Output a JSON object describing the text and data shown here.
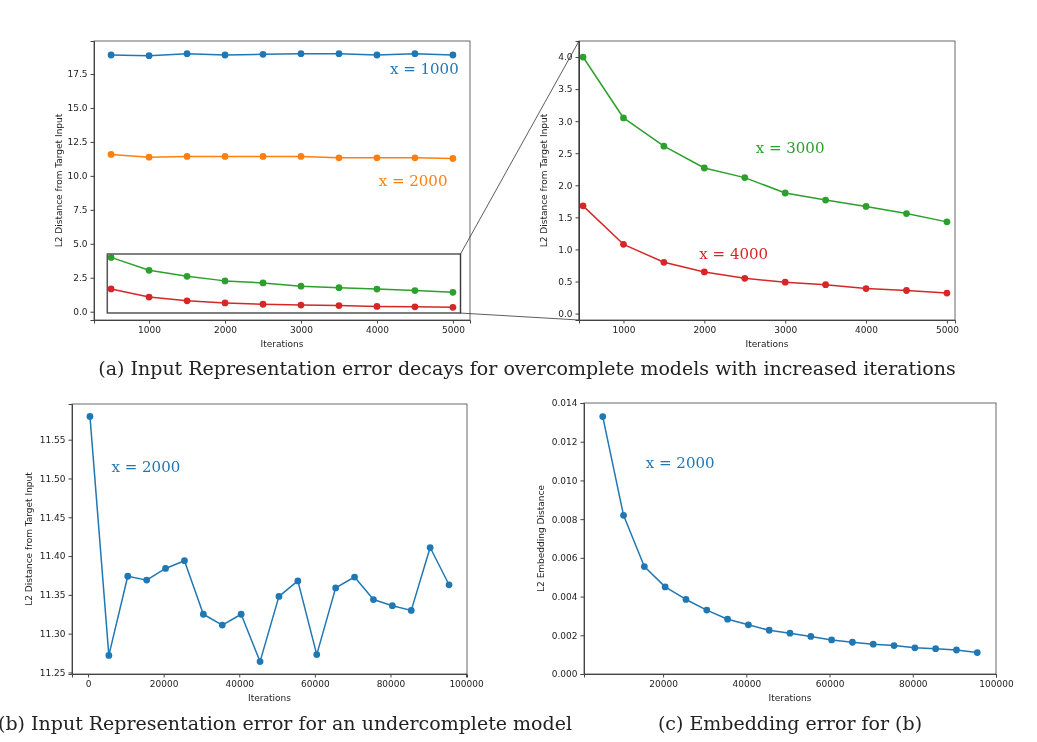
{
  "chart_data": [
    {
      "type": "line",
      "xlabel": "Iterations",
      "ylabel": "L2 Distance from Target Input",
      "x": [
        500,
        1000,
        1500,
        2000,
        2500,
        3000,
        3500,
        4000,
        4500,
        5000
      ],
      "series": [
        {
          "name": "x = 1000",
          "color": "#1f77b4",
          "values": [
            18.9,
            18.85,
            19.0,
            18.9,
            18.95,
            19.0,
            19.0,
            18.9,
            19.0,
            18.9
          ]
        },
        {
          "name": "x = 2000",
          "color": "#ff7f0e",
          "values": [
            11.58,
            11.38,
            11.43,
            11.43,
            11.43,
            11.43,
            11.33,
            11.33,
            11.33,
            11.28
          ]
        },
        {
          "color": "#2ca02c",
          "values": [
            4.0,
            3.05,
            2.61,
            2.27,
            2.12,
            1.88,
            1.77,
            1.67,
            1.56,
            1.43
          ]
        },
        {
          "color": "#d62728",
          "values": [
            1.68,
            1.08,
            0.8,
            0.65,
            0.55,
            0.49,
            0.45,
            0.39,
            0.36,
            0.32
          ]
        }
      ],
      "xlim": [
        275,
        5225
      ],
      "xticks": [
        1000,
        2000,
        3000,
        4000,
        5000
      ],
      "ylim": [
        -0.61,
        19.93
      ],
      "yticks": [
        {
          "value": 0,
          "label": "0.0"
        },
        2.5,
        {
          "value": 5,
          "label": "5.0"
        },
        7.5,
        {
          "value": 10,
          "label": "10.0"
        },
        12.5,
        {
          "value": 15,
          "label": "15.0"
        },
        17.5
      ],
      "marker": "circle",
      "line_style": "solid",
      "grid": false,
      "annotations": [
        "(a) Input Representation error decays for overcomplete models with increased iterations"
      ]
    },
    {
      "type": "line",
      "xlabel": "Iterations",
      "ylabel": "L2 Distance from Target Input",
      "x": [
        500,
        1000,
        1500,
        2000,
        2500,
        3000,
        3500,
        4000,
        4500,
        5000
      ],
      "series": [
        {
          "name": "x = 3000",
          "color": "#2ca02c",
          "values": [
            4.0,
            3.05,
            2.61,
            2.27,
            2.12,
            1.88,
            1.77,
            1.67,
            1.56,
            1.43
          ]
        },
        {
          "name": "x = 4000",
          "color": "#d62728",
          "values": [
            1.68,
            1.08,
            0.8,
            0.65,
            0.55,
            0.49,
            0.45,
            0.39,
            0.36,
            0.32
          ]
        }
      ],
      "xlim": [
        450,
        5100
      ],
      "xticks": [
        1000,
        2000,
        3000,
        4000,
        5000
      ],
      "ylim": [
        -0.1,
        4.25
      ],
      "yticks": [
        {
          "value": 0,
          "label": "0.0"
        },
        0.5,
        {
          "value": 1,
          "label": "1.0"
        },
        1.5,
        {
          "value": 2,
          "label": "2.0"
        },
        2.5,
        {
          "value": 3,
          "label": "3.0"
        },
        3.5,
        {
          "value": 4,
          "label": "4.0"
        }
      ],
      "marker": "circle",
      "line_style": "solid",
      "grid": false
    },
    {
      "type": "line",
      "xlabel": "Iterations",
      "ylabel": "L2 Distance from Target Input",
      "x": [
        500,
        5500,
        10500,
        15500,
        20500,
        25500,
        30500,
        35500,
        40500,
        45500,
        50500,
        55500,
        60500,
        65500,
        70500,
        75500,
        80500,
        85500,
        90500,
        95500
      ],
      "series": [
        {
          "name": "x = 2000",
          "color": "#1f77b4",
          "values": [
            11.58,
            11.272,
            11.374,
            11.369,
            11.384,
            11.394,
            11.325,
            11.311,
            11.325,
            11.264,
            11.348,
            11.368,
            11.273,
            11.359,
            11.373,
            11.344,
            11.336,
            11.33,
            11.411,
            11.363
          ]
        }
      ],
      "xlim": [
        -4250,
        100250
      ],
      "xticks": [
        0,
        20000,
        40000,
        60000,
        80000,
        100000
      ],
      "ylim": [
        11.248,
        11.596
      ],
      "yticks": [
        11.25,
        {
          "value": 11.3,
          "label": "11.30"
        },
        11.35,
        {
          "value": 11.4,
          "label": "11.40"
        },
        11.45,
        {
          "value": 11.5,
          "label": "11.50"
        },
        11.55
      ],
      "marker": "circle",
      "line_style": "solid",
      "grid": false,
      "annotations": [
        "(b) Input Representation error for an undercomplete model"
      ]
    },
    {
      "type": "line",
      "xlabel": "Iterations",
      "ylabel": "L2 Embedding Distance",
      "x": [
        5500,
        10500,
        15500,
        20500,
        25500,
        30500,
        35500,
        40500,
        45500,
        50500,
        55500,
        60500,
        65500,
        70500,
        75500,
        80500,
        85500,
        90500,
        95500
      ],
      "series": [
        {
          "name": "x = 2000",
          "color": "#1f77b4",
          "values": [
            0.0133,
            0.0082,
            0.00555,
            0.0045,
            0.00385,
            0.0033,
            0.00283,
            0.00254,
            0.00226,
            0.00211,
            0.00194,
            0.00176,
            0.00164,
            0.00154,
            0.00147,
            0.00135,
            0.00131,
            0.00124,
            0.00111
          ]
        }
      ],
      "xlim": [
        1000,
        100000
      ],
      "xticks": [
        20000,
        40000,
        60000,
        80000,
        100000
      ],
      "ylim": [
        0,
        0.014
      ],
      "yticks": [
        {
          "value": 0,
          "label": "0.000"
        },
        {
          "value": 0.002,
          "label": "0.002"
        },
        {
          "value": 0.004,
          "label": "0.004"
        },
        {
          "value": 0.006,
          "label": "0.006"
        },
        {
          "value": 0.008,
          "label": "0.008"
        },
        {
          "value": 0.01,
          "label": "0.010"
        },
        {
          "value": 0.012,
          "label": "0.012"
        },
        {
          "value": 0.014,
          "label": "0.014"
        }
      ],
      "marker": "circle",
      "line_style": "solid",
      "grid": false,
      "annotations": [
        "(c) Embedding error for (b)"
      ]
    }
  ]
}
